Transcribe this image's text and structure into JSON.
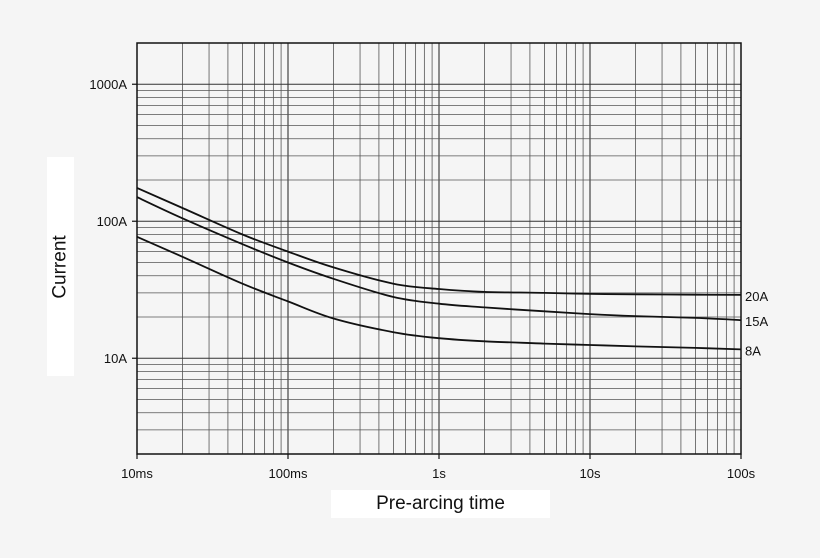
{
  "chart_data": {
    "type": "line",
    "xlabel": "Pre-arcing time",
    "ylabel": "Current",
    "x_scale": "log",
    "y_scale": "log",
    "x_unit": "s",
    "y_unit": "A",
    "xlim": [
      0.01,
      100
    ],
    "ylim": [
      2,
      2000
    ],
    "grid": true,
    "x_ticks": [
      {
        "value": 0.01,
        "label": "10ms"
      },
      {
        "value": 0.1,
        "label": "100ms"
      },
      {
        "value": 1,
        "label": "1s"
      },
      {
        "value": 10,
        "label": "10s"
      },
      {
        "value": 100,
        "label": "100s"
      }
    ],
    "y_ticks": [
      {
        "value": 10,
        "label": "10A"
      },
      {
        "value": 100,
        "label": "100A"
      },
      {
        "value": 1000,
        "label": "1000A"
      }
    ],
    "series": [
      {
        "name": "20A",
        "x": [
          0.01,
          0.02,
          0.05,
          0.1,
          0.2,
          0.5,
          1,
          2,
          5,
          10,
          20,
          50,
          100
        ],
        "y": [
          175,
          125,
          80,
          60,
          46,
          35,
          32,
          30.5,
          30,
          29.5,
          29.3,
          29.1,
          29
        ]
      },
      {
        "name": "15A",
        "x": [
          0.01,
          0.02,
          0.05,
          0.1,
          0.2,
          0.5,
          1,
          2,
          5,
          10,
          20,
          50,
          100
        ],
        "y": [
          150,
          105,
          68,
          50,
          38,
          28,
          25,
          23.5,
          22,
          21,
          20.3,
          19.7,
          19
        ]
      },
      {
        "name": "8A",
        "x": [
          0.01,
          0.02,
          0.05,
          0.1,
          0.2,
          0.5,
          1,
          2,
          5,
          10,
          20,
          50,
          100
        ],
        "y": [
          77,
          55,
          35,
          26,
          19.5,
          15.5,
          14,
          13.3,
          12.8,
          12.5,
          12.2,
          11.9,
          11.6
        ]
      }
    ]
  }
}
